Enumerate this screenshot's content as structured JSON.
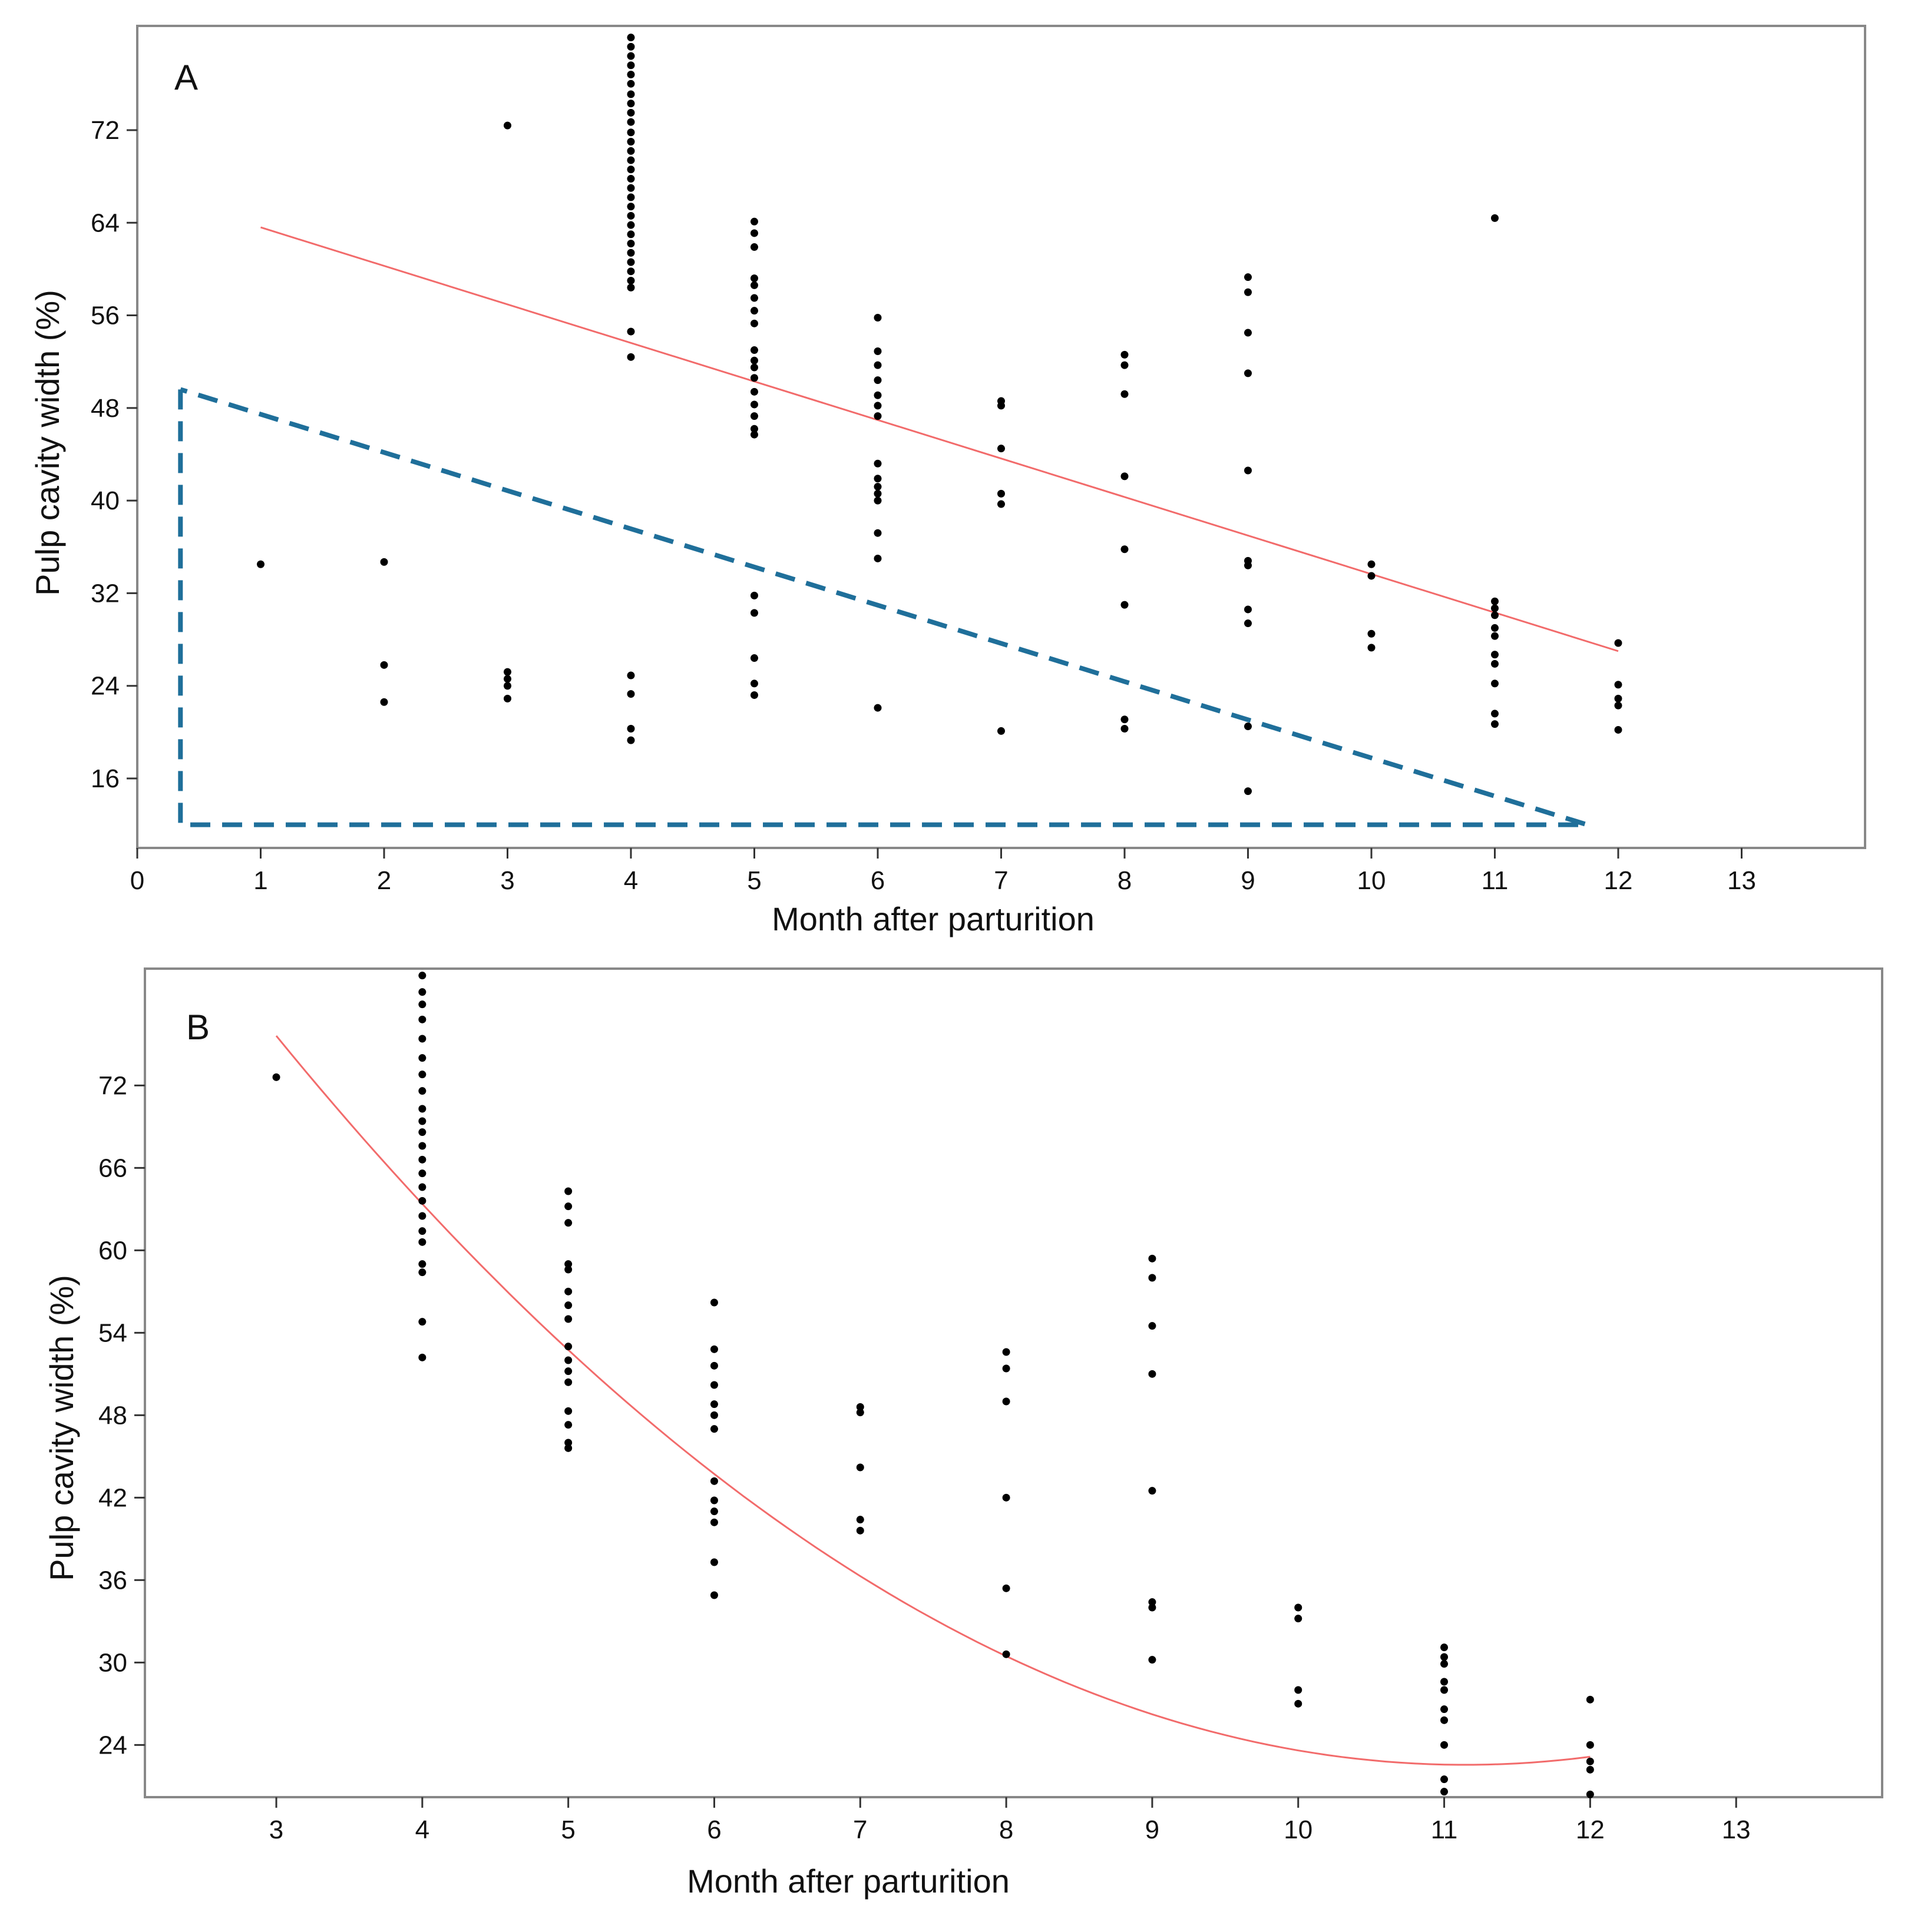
{
  "colors": {
    "points": "#000000",
    "fit_line": "#f26b6b",
    "dashed_region": "#1f6f9a",
    "frame": "#888888",
    "axis": "#333333"
  },
  "chart_data": [
    {
      "panel_label": "A",
      "type": "scatter",
      "xlabel": "Month after parturition",
      "ylabel": "Pulp cavity width (%)",
      "xlim": [
        0,
        14
      ],
      "ylim": [
        10,
        81
      ],
      "xticks": [
        0,
        1,
        2,
        3,
        4,
        5,
        6,
        7,
        8,
        9,
        10,
        11,
        12,
        13
      ],
      "yticks": [
        16,
        24,
        32,
        40,
        48,
        56,
        64,
        72
      ],
      "points": [
        [
          1,
          34.5
        ],
        [
          2,
          34.7
        ],
        [
          2,
          25.8
        ],
        [
          2,
          22.6
        ],
        [
          3,
          72.4
        ],
        [
          3,
          25.2
        ],
        [
          3,
          24.6
        ],
        [
          3,
          24.0
        ],
        [
          3,
          22.9
        ],
        [
          4,
          80.0
        ],
        [
          4,
          79.2
        ],
        [
          4,
          78.4
        ],
        [
          4,
          77.6
        ],
        [
          4,
          76.8
        ],
        [
          4,
          76.0
        ],
        [
          4,
          75.1
        ],
        [
          4,
          74.3
        ],
        [
          4,
          73.5
        ],
        [
          4,
          72.7
        ],
        [
          4,
          71.8
        ],
        [
          4,
          71.0
        ],
        [
          4,
          70.2
        ],
        [
          4,
          69.4
        ],
        [
          4,
          68.6
        ],
        [
          4,
          67.8
        ],
        [
          4,
          67.0
        ],
        [
          4,
          66.2
        ],
        [
          4,
          65.4
        ],
        [
          4,
          64.6
        ],
        [
          4,
          63.8
        ],
        [
          4,
          63.0
        ],
        [
          4,
          62.2
        ],
        [
          4,
          61.4
        ],
        [
          4,
          60.6
        ],
        [
          4,
          59.8
        ],
        [
          4,
          59.0
        ],
        [
          4,
          58.4
        ],
        [
          4,
          54.6
        ],
        [
          4,
          52.4
        ],
        [
          4,
          24.9
        ],
        [
          4,
          23.3
        ],
        [
          4,
          20.3
        ],
        [
          4,
          19.3
        ],
        [
          5,
          64.1
        ],
        [
          5,
          63.1
        ],
        [
          5,
          61.9
        ],
        [
          5,
          59.2
        ],
        [
          5,
          58.6
        ],
        [
          5,
          57.5
        ],
        [
          5,
          56.4
        ],
        [
          5,
          55.3
        ],
        [
          5,
          53.0
        ],
        [
          5,
          52.1
        ],
        [
          5,
          51.5
        ],
        [
          5,
          50.6
        ],
        [
          5,
          49.4
        ],
        [
          5,
          48.3
        ],
        [
          5,
          47.3
        ],
        [
          5,
          46.2
        ],
        [
          5,
          45.7
        ],
        [
          5,
          31.8
        ],
        [
          5,
          30.3
        ],
        [
          5,
          26.4
        ],
        [
          5,
          24.2
        ],
        [
          5,
          23.2
        ],
        [
          6,
          55.8
        ],
        [
          6,
          52.9
        ],
        [
          6,
          51.7
        ],
        [
          6,
          50.4
        ],
        [
          6,
          49.1
        ],
        [
          6,
          48.2
        ],
        [
          6,
          47.3
        ],
        [
          6,
          43.2
        ],
        [
          6,
          41.9
        ],
        [
          6,
          41.2
        ],
        [
          6,
          40.6
        ],
        [
          6,
          40.0
        ],
        [
          6,
          37.2
        ],
        [
          6,
          35.0
        ],
        [
          6,
          22.1
        ],
        [
          7,
          48.6
        ],
        [
          7,
          48.2
        ],
        [
          7,
          44.5
        ],
        [
          7,
          40.6
        ],
        [
          7,
          39.7
        ],
        [
          7,
          20.1
        ],
        [
          8,
          52.6
        ],
        [
          8,
          51.7
        ],
        [
          8,
          49.2
        ],
        [
          8,
          42.1
        ],
        [
          8,
          35.8
        ],
        [
          8,
          31.0
        ],
        [
          8,
          21.1
        ],
        [
          8,
          20.3
        ],
        [
          9,
          59.3
        ],
        [
          9,
          58.0
        ],
        [
          9,
          54.5
        ],
        [
          9,
          51.0
        ],
        [
          9,
          42.6
        ],
        [
          9,
          34.8
        ],
        [
          9,
          34.4
        ],
        [
          9,
          30.6
        ],
        [
          9,
          29.4
        ],
        [
          9,
          20.5
        ],
        [
          9,
          14.9
        ],
        [
          10,
          34.5
        ],
        [
          10,
          33.5
        ],
        [
          10,
          28.5
        ],
        [
          10,
          27.3
        ],
        [
          11,
          64.4
        ],
        [
          11,
          31.3
        ],
        [
          11,
          30.7
        ],
        [
          11,
          30.1
        ],
        [
          11,
          29.0
        ],
        [
          11,
          28.3
        ],
        [
          11,
          26.7
        ],
        [
          11,
          25.9
        ],
        [
          11,
          24.2
        ],
        [
          11,
          21.6
        ],
        [
          11,
          20.7
        ],
        [
          12,
          27.7
        ],
        [
          12,
          24.1
        ],
        [
          12,
          22.9
        ],
        [
          12,
          22.3
        ],
        [
          12,
          20.2
        ]
      ],
      "fit_line": {
        "kind": "linear",
        "x": [
          1,
          12
        ],
        "y": [
          63.6,
          27.0
        ]
      },
      "dashed_region": {
        "vertices": [
          [
            0.35,
            49.6
          ],
          [
            0.35,
            12.0
          ],
          [
            11.75,
            12.0
          ]
        ]
      }
    },
    {
      "panel_label": "B",
      "type": "scatter",
      "xlabel": "Month after parturition",
      "ylabel": "Pulp cavity width (%)",
      "xlim": [
        2.1,
        14.0
      ],
      "ylim": [
        20.2,
        80.5
      ],
      "xticks": [
        3,
        4,
        5,
        6,
        7,
        8,
        9,
        10,
        11,
        12,
        13
      ],
      "yticks": [
        24,
        30,
        36,
        42,
        48,
        54,
        60,
        66,
        72
      ],
      "points": [
        [
          3,
          72.6
        ],
        [
          4,
          80.0
        ],
        [
          4,
          78.8
        ],
        [
          4,
          77.9
        ],
        [
          4,
          76.8
        ],
        [
          4,
          75.4
        ],
        [
          4,
          74.0
        ],
        [
          4,
          72.8
        ],
        [
          4,
          71.6
        ],
        [
          4,
          70.3
        ],
        [
          4,
          69.4
        ],
        [
          4,
          68.6
        ],
        [
          4,
          67.6
        ],
        [
          4,
          66.6
        ],
        [
          4,
          65.6
        ],
        [
          4,
          64.6
        ],
        [
          4,
          63.6
        ],
        [
          4,
          62.5
        ],
        [
          4,
          61.4
        ],
        [
          4,
          60.6
        ],
        [
          4,
          59.0
        ],
        [
          4,
          58.4
        ],
        [
          4,
          54.8
        ],
        [
          4,
          52.2
        ],
        [
          5,
          64.3
        ],
        [
          5,
          63.2
        ],
        [
          5,
          62.0
        ],
        [
          5,
          59.0
        ],
        [
          5,
          58.6
        ],
        [
          5,
          57.0
        ],
        [
          5,
          56.0
        ],
        [
          5,
          55.0
        ],
        [
          5,
          53.0
        ],
        [
          5,
          52.0
        ],
        [
          5,
          51.2
        ],
        [
          5,
          50.4
        ],
        [
          5,
          48.3
        ],
        [
          5,
          47.3
        ],
        [
          5,
          46.0
        ],
        [
          5,
          45.6
        ],
        [
          6,
          56.2
        ],
        [
          6,
          52.8
        ],
        [
          6,
          51.6
        ],
        [
          6,
          50.2
        ],
        [
          6,
          48.8
        ],
        [
          6,
          48.0
        ],
        [
          6,
          47.0
        ],
        [
          6,
          43.2
        ],
        [
          6,
          41.8
        ],
        [
          6,
          41.0
        ],
        [
          6,
          40.2
        ],
        [
          6,
          37.3
        ],
        [
          6,
          34.9
        ],
        [
          7,
          48.6
        ],
        [
          7,
          48.2
        ],
        [
          7,
          44.2
        ],
        [
          7,
          40.4
        ],
        [
          7,
          39.6
        ],
        [
          8,
          52.6
        ],
        [
          8,
          51.4
        ],
        [
          8,
          49.0
        ],
        [
          8,
          42.0
        ],
        [
          8,
          35.4
        ],
        [
          8,
          30.6
        ],
        [
          9,
          59.4
        ],
        [
          9,
          58.0
        ],
        [
          9,
          54.5
        ],
        [
          9,
          51.0
        ],
        [
          9,
          42.5
        ],
        [
          9,
          34.4
        ],
        [
          9,
          34.0
        ],
        [
          9,
          30.2
        ],
        [
          10,
          34.0
        ],
        [
          10,
          33.2
        ],
        [
          10,
          28.0
        ],
        [
          10,
          27.0
        ],
        [
          11,
          31.1
        ],
        [
          11,
          30.4
        ],
        [
          11,
          29.9
        ],
        [
          11,
          28.6
        ],
        [
          11,
          28.0
        ],
        [
          11,
          26.6
        ],
        [
          11,
          25.8
        ],
        [
          11,
          24.0
        ],
        [
          11,
          21.5
        ],
        [
          11,
          20.6
        ],
        [
          12,
          27.3
        ],
        [
          12,
          24.0
        ],
        [
          12,
          22.8
        ],
        [
          12,
          22.2
        ],
        [
          12,
          20.4
        ]
      ],
      "fit_line": {
        "kind": "quadratic",
        "x_range": [
          3,
          12
        ],
        "coefficients": [
          121.9,
          -17.83,
          0.8
        ]
      }
    }
  ]
}
